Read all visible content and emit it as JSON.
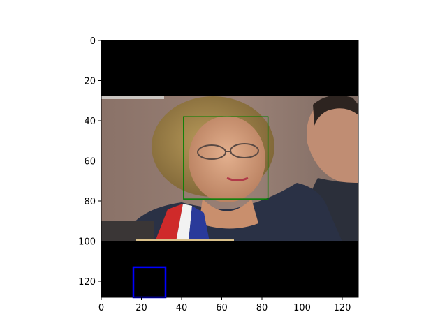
{
  "figure": {
    "image_extent": {
      "xmin": 0,
      "xmax": 128,
      "ymin": 0,
      "ymax": 128
    },
    "x_ticks": [
      0,
      20,
      40,
      60,
      80,
      100,
      120
    ],
    "y_ticks": [
      0,
      20,
      40,
      60,
      80,
      100,
      120
    ],
    "padding_color": "#000000",
    "photo_region": {
      "x0": 0,
      "x1": 128,
      "y0": 28,
      "y1": 100
    },
    "boxes": [
      {
        "name": "face-detection-box",
        "color": "#008000",
        "x0": 41,
        "y0": 38,
        "x1": 83,
        "y1": 79
      },
      {
        "name": "blue-marker-box",
        "color": "#0000ff",
        "x0": 16,
        "y0": 113,
        "x1": 32,
        "y1": 128
      }
    ]
  }
}
